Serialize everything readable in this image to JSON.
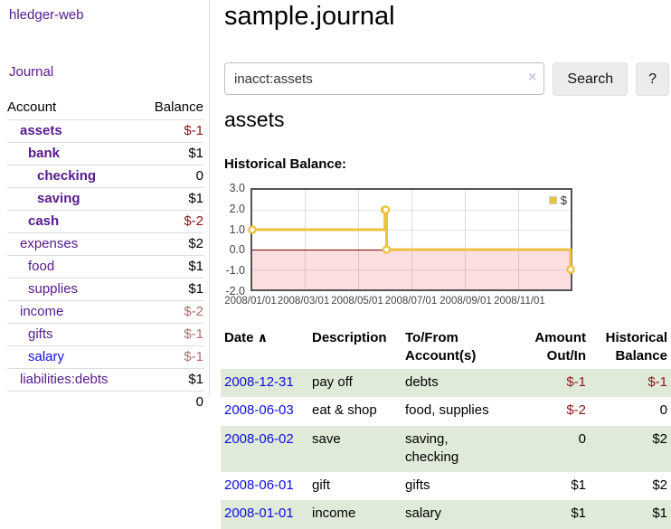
{
  "sidebar": {
    "brand": "hledger-web",
    "journal_link": "Journal",
    "accounts_table": {
      "headers": {
        "account": "Account",
        "balance": "Balance"
      },
      "rows": [
        {
          "name": "assets",
          "balance": "$-1",
          "depth": 1,
          "bold": true,
          "negative": true
        },
        {
          "name": "bank",
          "balance": "$1",
          "depth": 2,
          "bold": true,
          "negative": false
        },
        {
          "name": "checking",
          "balance": "0",
          "depth": 3,
          "bold": true,
          "negative": false
        },
        {
          "name": "saving",
          "balance": "$1",
          "depth": 3,
          "bold": true,
          "negative": false
        },
        {
          "name": "cash",
          "balance": "$-2",
          "depth": 2,
          "bold": true,
          "negative": true
        },
        {
          "name": "expenses",
          "balance": "$2",
          "depth": 1,
          "bold": false,
          "negative": false
        },
        {
          "name": "food",
          "balance": "$1",
          "depth": 2,
          "bold": false,
          "negative": false
        },
        {
          "name": "supplies",
          "balance": "$1",
          "depth": 2,
          "bold": false,
          "negative": false
        },
        {
          "name": "income",
          "balance": "$-2",
          "depth": 1,
          "bold": false,
          "negative": true
        },
        {
          "name": "gifts",
          "balance": "$-1",
          "depth": 2,
          "bold": false,
          "negative": true
        },
        {
          "name": "salary",
          "balance": "$-1",
          "depth": 2,
          "bold": false,
          "negative": true
        },
        {
          "name": "liabilities:debts",
          "balance": "$1",
          "depth": 1,
          "bold": false,
          "negative": false
        }
      ],
      "total": "0"
    }
  },
  "header": {
    "title": "sample.journal"
  },
  "search": {
    "value": "inacct:assets",
    "clear_icon": "×",
    "search_button": "Search",
    "help_button": "?"
  },
  "account_page": {
    "title": "assets",
    "chart_label": "Historical Balance:"
  },
  "chart_data": {
    "type": "line",
    "title": "Historical Balance",
    "series": [
      {
        "name": "$",
        "color": "#edc240",
        "steps": true,
        "points": [
          [
            "2008-01-01",
            1
          ],
          [
            "2008-06-01",
            2
          ],
          [
            "2008-06-02",
            2
          ],
          [
            "2008-06-03",
            0
          ],
          [
            "2008-12-31",
            -1
          ]
        ]
      }
    ],
    "x_range": [
      "2008-01-01",
      "2008-12-31"
    ],
    "ylim": [
      -2,
      3
    ],
    "y_ticks": [
      "3.0",
      "2.0",
      "1.0",
      "0.0",
      "-1.0",
      "-2.0"
    ],
    "x_ticks": [
      "2008/01/01",
      "2008/03/01",
      "2008/05/01",
      "2008/07/01",
      "2008/09/01",
      "2008/11/01"
    ],
    "legend_position": "top-right",
    "grid": true,
    "negative_region_color": "#fcdee1",
    "zero_line_color": "#8b0000"
  },
  "register_table": {
    "headers": {
      "date": "Date",
      "sort_icon": "∧",
      "description": "Description",
      "accounts": "To/From Account(s)",
      "amount": "Amount Out/In",
      "balance": "Historical Balance"
    },
    "rows": [
      {
        "date": "2008-12-31",
        "description": "pay off",
        "accounts": "debts",
        "amount": "$-1",
        "amount_negative": true,
        "balance": "$-1",
        "balance_negative": true
      },
      {
        "date": "2008-06-03",
        "description": "eat & shop",
        "accounts": "food, supplies",
        "amount": "$-2",
        "amount_negative": true,
        "balance": "0",
        "balance_negative": false
      },
      {
        "date": "2008-06-02",
        "description": "save",
        "accounts": "saving, checking",
        "amount": "0",
        "amount_negative": false,
        "balance": "$2",
        "balance_negative": false
      },
      {
        "date": "2008-06-01",
        "description": "gift",
        "accounts": "gifts",
        "amount": "$1",
        "amount_negative": false,
        "balance": "$2",
        "balance_negative": false
      },
      {
        "date": "2008-01-01",
        "description": "income",
        "accounts": "salary",
        "amount": "$1",
        "amount_negative": false,
        "balance": "$1",
        "balance_negative": false
      }
    ]
  }
}
